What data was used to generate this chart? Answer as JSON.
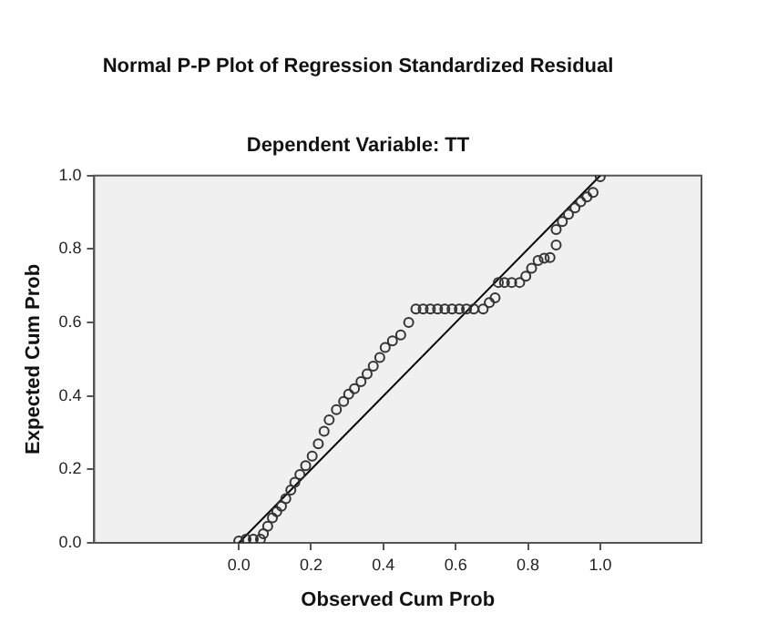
{
  "chart_data": {
    "type": "scatter",
    "title": "Normal P-P Plot of Regression Standardized Residual",
    "subtitle": "Dependent Variable: TT",
    "xlabel": "Observed Cum Prob",
    "ylabel": "Expected Cum Prob",
    "xlim": [
      -0.4,
      1.28
    ],
    "xticks": [
      {
        "value": 0,
        "label": "0.0"
      },
      {
        "value": 0.2,
        "label": "0.2"
      },
      {
        "value": 0.4,
        "label": "0.4"
      },
      {
        "value": 0.6,
        "label": "0.6"
      },
      {
        "value": 0.8,
        "label": "0.8"
      },
      {
        "value": 1,
        "label": "1.0"
      }
    ],
    "ylim": [
      0,
      1
    ],
    "yticks": [
      {
        "value": 0,
        "label": "0.0"
      },
      {
        "value": 0.2,
        "label": "0.2"
      },
      {
        "value": 0.4,
        "label": "0.4"
      },
      {
        "value": 0.6,
        "label": "0.6"
      },
      {
        "value": 0.8,
        "label": "0.8"
      },
      {
        "value": 1,
        "label": "1.0"
      }
    ],
    "grid": false,
    "legend": false,
    "marker": "circle",
    "series": [
      {
        "color": "#333333",
        "x": [
          0,
          0.02,
          0.04,
          0.06,
          0.068,
          0.08,
          0.093,
          0.105,
          0.118,
          0.13,
          0.144,
          0.155,
          0.169,
          0.185,
          0.203,
          0.22,
          0.236,
          0.25,
          0.27,
          0.29,
          0.304,
          0.32,
          0.338,
          0.355,
          0.372,
          0.39,
          0.405,
          0.425,
          0.448,
          0.47,
          0.49,
          0.51,
          0.53,
          0.55,
          0.57,
          0.59,
          0.61,
          0.63,
          0.65,
          0.676,
          0.693,
          0.709,
          0.718,
          0.735,
          0.755,
          0.777,
          0.794,
          0.81,
          0.828,
          0.845,
          0.861,
          0.878,
          0.878,
          0.895,
          0.912,
          0.93,
          0.946,
          0.963,
          0.98,
          1.0
        ],
        "values": [
          0.005,
          0.01,
          0.01,
          0.01,
          0.025,
          0.045,
          0.068,
          0.085,
          0.1,
          0.12,
          0.144,
          0.165,
          0.186,
          0.21,
          0.236,
          0.27,
          0.304,
          0.335,
          0.363,
          0.385,
          0.405,
          0.42,
          0.439,
          0.46,
          0.481,
          0.505,
          0.532,
          0.55,
          0.566,
          0.6,
          0.637,
          0.637,
          0.637,
          0.637,
          0.637,
          0.637,
          0.637,
          0.637,
          0.637,
          0.637,
          0.654,
          0.667,
          0.709,
          0.709,
          0.709,
          0.709,
          0.726,
          0.748,
          0.769,
          0.775,
          0.777,
          0.811,
          0.853,
          0.875,
          0.895,
          0.912,
          0.929,
          0.942,
          0.954,
          0.997
        ]
      },
      {
        "type": "line",
        "color": "#000000",
        "x": [
          0,
          1
        ],
        "values": [
          0,
          1
        ],
        "marker": "none"
      }
    ]
  }
}
